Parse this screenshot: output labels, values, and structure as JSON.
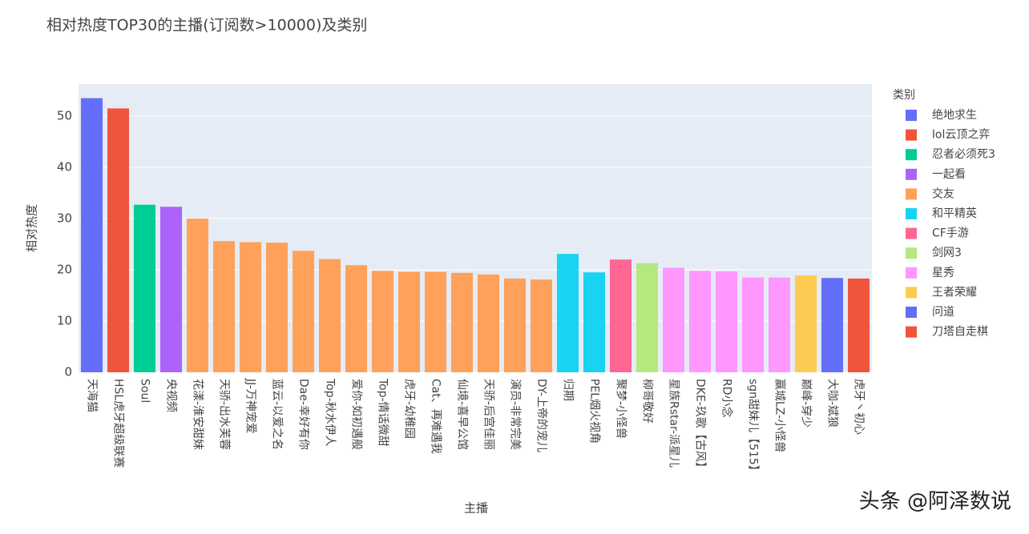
{
  "chart_data": {
    "type": "bar",
    "title": "相对热度TOP30的主播(订阅数>10000)及类别",
    "x_label": "主播",
    "y_label": "相对热度",
    "legend_title": "类别",
    "watermark": "头条 @阿泽数说",
    "categories": [
      "天海猫",
      "HSL虎牙超级联赛",
      "Soul",
      "央视频",
      "花漾-淮安甜妹",
      "天骄-出水芙蓉",
      "JJ-万神宠爱",
      "蓝云-以爱之名",
      "Dae-幸好有你",
      "Top-秋水伊人",
      "爱你-如初遇般",
      "Top-情话微甜",
      "虎牙-幼稚园",
      "Cat、再难遇我",
      "仙境-喜早公馆",
      "天骄-后宫佳丽",
      "演员-非常完美",
      "DY-上帝的宠儿",
      "归期",
      "PEL烟火视角",
      "聚梦-小怪兽",
      "柳哥敬好",
      "星族Rstar-派星儿",
      "DKE-玖歌【古风】",
      "RD小念",
      "sgn甜妹儿【515】",
      "赢城LZ-小怪兽",
      "巅峰-穿少",
      "大咖-斌狼",
      "虎牙丶初心"
    ],
    "series": [
      {
        "name": "绝地求生",
        "color": "#636efa",
        "values": [
          53.5,
          null,
          null,
          null,
          null,
          null,
          null,
          null,
          null,
          null,
          null,
          null,
          null,
          null,
          null,
          null,
          null,
          null,
          null,
          null,
          null,
          null,
          null,
          null,
          null,
          null,
          null,
          null,
          null,
          null
        ]
      },
      {
        "name": "lol云顶之弈",
        "color": "#ef553b",
        "values": [
          null,
          51.5,
          null,
          null,
          null,
          null,
          null,
          null,
          null,
          null,
          null,
          null,
          null,
          null,
          null,
          null,
          null,
          null,
          null,
          null,
          null,
          null,
          null,
          null,
          null,
          null,
          null,
          null,
          null,
          null
        ]
      },
      {
        "name": "忍者必须死3",
        "color": "#00cc96",
        "values": [
          null,
          null,
          32.7,
          null,
          null,
          null,
          null,
          null,
          null,
          null,
          null,
          null,
          null,
          null,
          null,
          null,
          null,
          null,
          null,
          null,
          null,
          null,
          null,
          null,
          null,
          null,
          null,
          null,
          null,
          null
        ]
      },
      {
        "name": "一起看",
        "color": "#ab63fa",
        "values": [
          null,
          null,
          null,
          32.3,
          null,
          null,
          null,
          null,
          null,
          null,
          null,
          null,
          null,
          null,
          null,
          null,
          null,
          null,
          null,
          null,
          null,
          null,
          null,
          null,
          null,
          null,
          null,
          null,
          null,
          null
        ]
      },
      {
        "name": "交友",
        "color": "#ffa15a",
        "values": [
          null,
          null,
          null,
          null,
          30.0,
          25.6,
          25.4,
          25.3,
          23.7,
          22.1,
          20.9,
          19.8,
          19.6,
          19.6,
          19.4,
          19.1,
          18.3,
          18.1,
          null,
          null,
          null,
          null,
          null,
          null,
          null,
          null,
          null,
          null,
          null,
          null
        ]
      },
      {
        "name": "和平精英",
        "color": "#19d3f3",
        "values": [
          null,
          null,
          null,
          null,
          null,
          null,
          null,
          null,
          null,
          null,
          null,
          null,
          null,
          null,
          null,
          null,
          null,
          null,
          23.1,
          19.5,
          null,
          null,
          null,
          null,
          null,
          null,
          null,
          null,
          null,
          null
        ]
      },
      {
        "name": "CF手游",
        "color": "#ff6692",
        "values": [
          null,
          null,
          null,
          null,
          null,
          null,
          null,
          null,
          null,
          null,
          null,
          null,
          null,
          null,
          null,
          null,
          null,
          null,
          null,
          null,
          22.0,
          null,
          null,
          null,
          null,
          null,
          null,
          null,
          null,
          null
        ]
      },
      {
        "name": "剑网3",
        "color": "#b6e880",
        "values": [
          null,
          null,
          null,
          null,
          null,
          null,
          null,
          null,
          null,
          null,
          null,
          null,
          null,
          null,
          null,
          null,
          null,
          null,
          null,
          null,
          null,
          21.3,
          null,
          null,
          null,
          null,
          null,
          null,
          null,
          null
        ]
      },
      {
        "name": "星秀",
        "color": "#ff97ff",
        "values": [
          null,
          null,
          null,
          null,
          null,
          null,
          null,
          null,
          null,
          null,
          null,
          null,
          null,
          null,
          null,
          null,
          null,
          null,
          null,
          null,
          null,
          null,
          20.4,
          19.8,
          19.7,
          18.5,
          18.5,
          null,
          null,
          null
        ]
      },
      {
        "name": "王者荣耀",
        "color": "#fecb52",
        "values": [
          null,
          null,
          null,
          null,
          null,
          null,
          null,
          null,
          null,
          null,
          null,
          null,
          null,
          null,
          null,
          null,
          null,
          null,
          null,
          null,
          null,
          null,
          null,
          null,
          null,
          null,
          null,
          18.9,
          null,
          null
        ]
      },
      {
        "name": "问道",
        "color": "#636efa",
        "values": [
          null,
          null,
          null,
          null,
          null,
          null,
          null,
          null,
          null,
          null,
          null,
          null,
          null,
          null,
          null,
          null,
          null,
          null,
          null,
          null,
          null,
          null,
          null,
          null,
          null,
          null,
          null,
          null,
          18.4,
          null
        ]
      },
      {
        "name": "刀塔自走棋",
        "color": "#ef553b",
        "values": [
          null,
          null,
          null,
          null,
          null,
          null,
          null,
          null,
          null,
          null,
          null,
          null,
          null,
          null,
          null,
          null,
          null,
          null,
          null,
          null,
          null,
          null,
          null,
          null,
          null,
          null,
          null,
          null,
          null,
          18.3
        ]
      }
    ],
    "ylim": [
      0,
      56.25
    ],
    "yticks": [
      0,
      10,
      20,
      30,
      40,
      50
    ],
    "grid": true
  }
}
